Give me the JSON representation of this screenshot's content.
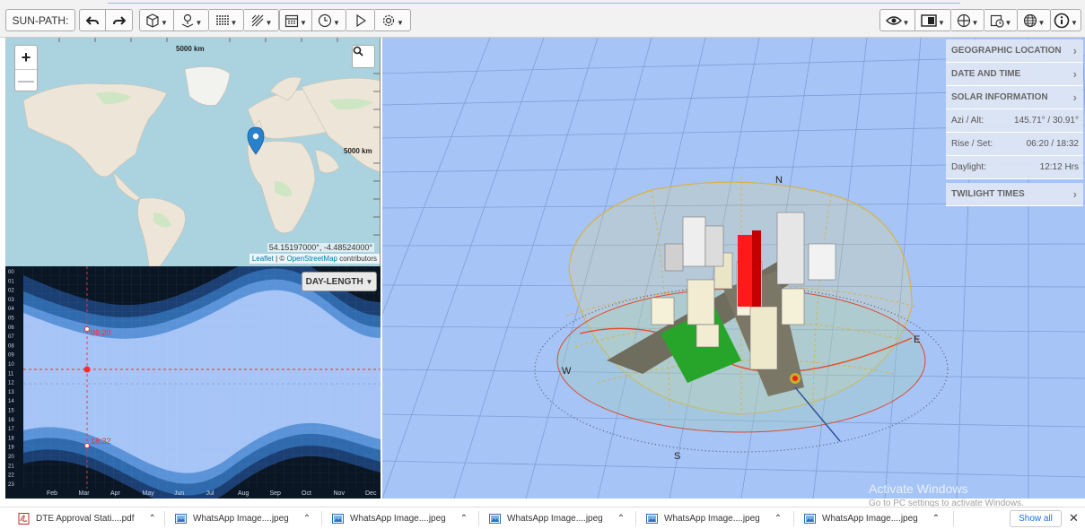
{
  "toolbar": {
    "mode_label": "SUN-PATH:",
    "buttons": [
      "undo",
      "redo",
      "model",
      "location",
      "grid",
      "shading",
      "calendar",
      "clock",
      "play",
      "settings"
    ],
    "right_buttons": [
      "view-eye",
      "display",
      "globe",
      "date-picker",
      "world",
      "info"
    ]
  },
  "map": {
    "scale_top": "5000 km",
    "scale_right": "5000 km",
    "coordinates": "54.15197000°, -4.48524000°",
    "attribution_leaflet": "Leaflet",
    "attribution_sep": " | © ",
    "attribution_osm": "OpenStreetMap",
    "attribution_rest": " contributors",
    "zoom_in": "+",
    "zoom_out": "—"
  },
  "daylength": {
    "mode_label": "DAY-LENGTH",
    "months": [
      "Feb",
      "Mar",
      "Apr",
      "May",
      "Jun",
      "Jul",
      "Aug",
      "Sep",
      "Oct",
      "Nov",
      "Dec"
    ],
    "hours": [
      "00",
      "01",
      "02",
      "03",
      "04",
      "05",
      "06",
      "07",
      "08",
      "09",
      "10",
      "11",
      "12",
      "13",
      "14",
      "15",
      "16",
      "17",
      "18",
      "19",
      "20",
      "21",
      "22",
      "23"
    ],
    "sunrise": "06:20",
    "sunset": "18:32"
  },
  "info_panel": {
    "geo": "GEOGRAPHIC LOCATION",
    "datetime": "DATE AND TIME",
    "solar": "SOLAR INFORMATION",
    "azi_label": "Azi / Alt:",
    "azi_value": "145.71° / 30.91°",
    "rise_label": "Rise / Set:",
    "rise_value": "06:20 / 18:32",
    "daylight_label": "Daylight:",
    "daylight_value": "12:12 Hrs",
    "twilight": "TWILIGHT TIMES"
  },
  "compass": {
    "n": "N",
    "s": "S",
    "e": "E",
    "w": "W"
  },
  "watermark": {
    "line1": "Activate Windows",
    "line2": "Go to PC settings to activate Windows."
  },
  "downloads": {
    "items": [
      {
        "name": "DTE Approval Stati....pdf",
        "type": "pdf"
      },
      {
        "name": "WhatsApp Image....jpeg",
        "type": "image"
      },
      {
        "name": "WhatsApp Image....jpeg",
        "type": "image"
      },
      {
        "name": "WhatsApp Image....jpeg",
        "type": "image"
      },
      {
        "name": "WhatsApp Image....jpeg",
        "type": "image"
      },
      {
        "name": "WhatsApp Image....jpeg",
        "type": "image"
      }
    ],
    "show_all": "Show all",
    "close": "✕"
  },
  "colors": {
    "view_bg": "#a6c4f5",
    "highlight_building": "#ff1a1a",
    "sun_marker": "#ffd400",
    "link": "#1a73e8"
  }
}
